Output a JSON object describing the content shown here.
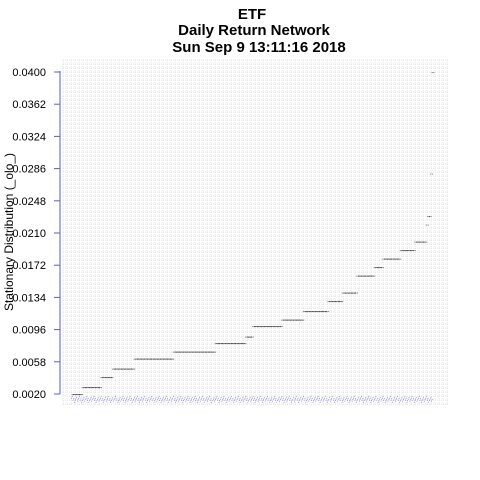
{
  "chart_data": {
    "type": "scatter",
    "title_lines": [
      "ETF",
      "Daily Return Network",
      "Sun Sep  9 13:11:16 2018"
    ],
    "xlabel": "",
    "ylabel": "Stationary Distribution (_olo_)",
    "ylim": [
      0.0017,
      0.0405
    ],
    "yticks": [
      "0.0400",
      "0.0362",
      "0.0324",
      "0.0286",
      "0.0248",
      "0.0210",
      "0.0172",
      "0.0134",
      "0.0096",
      "0.0058",
      "0.0020"
    ],
    "grid": true,
    "levels": [
      {
        "value": 0.002,
        "start": 0.0,
        "end": 0.005
      },
      {
        "value": 0.0028,
        "start": 0.025,
        "end": 0.075
      },
      {
        "value": 0.004,
        "start": 0.078,
        "end": 0.105
      },
      {
        "value": 0.005,
        "start": 0.11,
        "end": 0.165
      },
      {
        "value": 0.0062,
        "start": 0.17,
        "end": 0.28
      },
      {
        "value": 0.007,
        "start": 0.28,
        "end": 0.39
      },
      {
        "value": 0.008,
        "start": 0.395,
        "end": 0.475
      },
      {
        "value": 0.0088,
        "start": 0.478,
        "end": 0.495
      },
      {
        "value": 0.01,
        "start": 0.5,
        "end": 0.575
      },
      {
        "value": 0.0108,
        "start": 0.58,
        "end": 0.635
      },
      {
        "value": 0.0118,
        "start": 0.64,
        "end": 0.705
      },
      {
        "value": 0.013,
        "start": 0.71,
        "end": 0.745
      },
      {
        "value": 0.014,
        "start": 0.75,
        "end": 0.785
      },
      {
        "value": 0.016,
        "start": 0.79,
        "end": 0.835
      },
      {
        "value": 0.017,
        "start": 0.838,
        "end": 0.855
      },
      {
        "value": 0.018,
        "start": 0.86,
        "end": 0.905
      },
      {
        "value": 0.019,
        "start": 0.908,
        "end": 0.945
      },
      {
        "value": 0.02,
        "start": 0.948,
        "end": 0.985
      },
      {
        "value": 0.022,
        "start": 0.987,
        "end": 0.992
      },
      {
        "value": 0.023,
        "start": 0.995,
        "end": 1.005
      },
      {
        "value": 0.028,
        "start": 1.01,
        "end": 1.016
      },
      {
        "value": 0.04,
        "start": 1.02,
        "end": 1.03
      }
    ],
    "point_count": 250,
    "point_label": "**",
    "point_color": "#000000",
    "x_tick_label_color": "#2b2bd1",
    "axis_color": "#5a5ad6",
    "grid_color": "#c8c8c8"
  }
}
